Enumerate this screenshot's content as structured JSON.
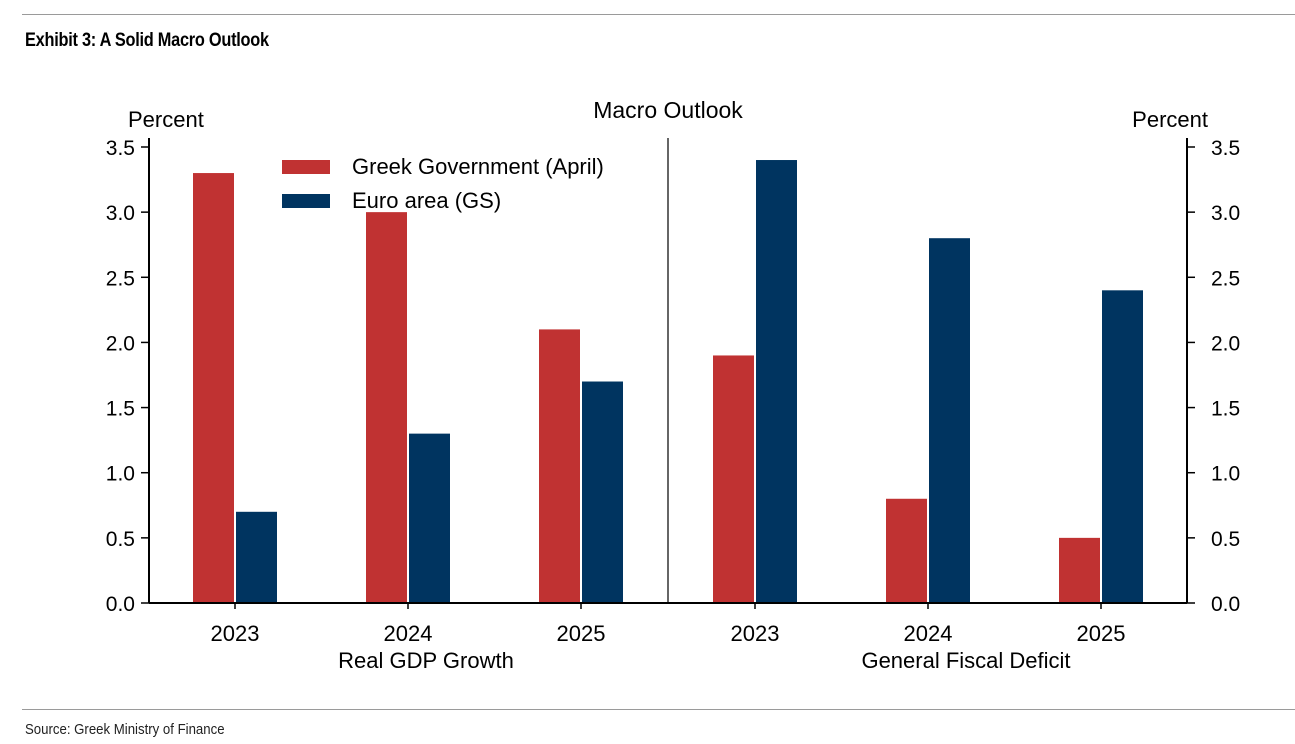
{
  "exhibit": {
    "title": "Exhibit 3: A Solid Macro Outlook",
    "source": "Source: Greek Ministry of Finance"
  },
  "colors": {
    "greek_government": "#c03232",
    "euro_area": "#003460",
    "axis": "#000000"
  },
  "chart_data": {
    "type": "bar",
    "title": "Macro Outlook",
    "left_axis_label": "Percent",
    "right_axis_label": "Percent",
    "ylim": [
      0,
      3.5
    ],
    "yticks": [
      "0.0",
      "0.5",
      "1.0",
      "1.5",
      "2.0",
      "2.5",
      "3.0",
      "3.5"
    ],
    "legend": [
      "Greek Government (April)",
      "Euro area (GS)"
    ],
    "legend_position": "top-left",
    "panels": [
      {
        "xlabel": "Real GDP Growth",
        "categories": [
          "2023",
          "2024",
          "2025"
        ],
        "series": [
          {
            "name": "Greek Government (April)",
            "values": [
              3.3,
              3.0,
              2.1
            ]
          },
          {
            "name": "Euro area (GS)",
            "values": [
              0.7,
              1.3,
              1.7
            ]
          }
        ]
      },
      {
        "xlabel": "General Fiscal Deficit",
        "categories": [
          "2023",
          "2024",
          "2025"
        ],
        "series": [
          {
            "name": "Greek Government (April)",
            "values": [
              1.9,
              0.8,
              0.5
            ]
          },
          {
            "name": "Euro area (GS)",
            "values": [
              3.4,
              2.8,
              2.4
            ]
          }
        ]
      }
    ]
  }
}
